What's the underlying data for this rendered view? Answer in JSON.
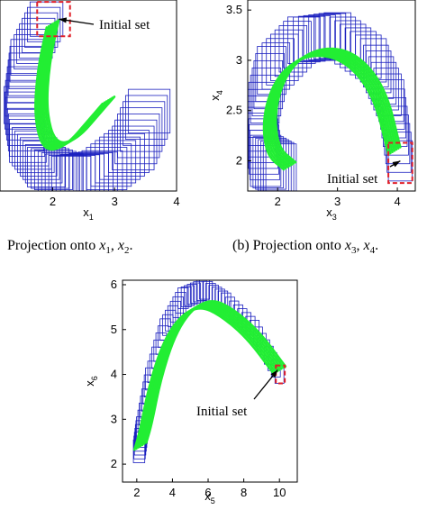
{
  "captions": {
    "a": {
      "prefix": "Projection onto ",
      "v1": "x",
      "s1": "1",
      "v2": "x",
      "s2": "2"
    },
    "b": {
      "prefix": "(b) Projection onto ",
      "v1": "x",
      "s1": "3",
      "v2": "x",
      "s2": "4"
    }
  },
  "colors": {
    "reachable_outline": "#1a1fbf",
    "trajectory": "#22ee33",
    "initial_box": "#e0202a",
    "axis": "#000000"
  },
  "chart_data": [
    {
      "type": "line",
      "id": "panel-a",
      "xlabel": "x",
      "xlabel_sub": "1",
      "ylabel": "",
      "ylabel_sub": "",
      "xlim": [
        1.15,
        4.0
      ],
      "ylim": [
        0.0,
        2.0
      ],
      "xticks": [
        2,
        3,
        4
      ],
      "yticks": [],
      "annotation": {
        "text": "Initial set",
        "arrow_to": [
          2.1,
          1.8
        ]
      },
      "initial_set": {
        "x": [
          1.75,
          2.28
        ],
        "y": [
          1.62,
          1.98
        ]
      },
      "series": [
        {
          "role": "reach-tube",
          "values_x": [
            1.9,
            1.6,
            1.5,
            1.6,
            1.9,
            2.3,
            2.8,
            3.3,
            3.6
          ],
          "values_y": [
            1.8,
            1.4,
            0.9,
            0.5,
            0.25,
            0.15,
            0.2,
            0.45,
            0.9
          ]
        },
        {
          "role": "trajectory",
          "values_x": [
            2.0,
            1.85,
            1.8,
            1.95,
            2.3,
            2.7,
            2.9
          ],
          "values_y": [
            1.75,
            1.3,
            0.8,
            0.45,
            0.5,
            0.8,
            0.95
          ]
        }
      ]
    },
    {
      "type": "line",
      "id": "panel-b",
      "xlabel": "x",
      "xlabel_sub": "3",
      "ylabel": "x",
      "ylabel_sub": "4",
      "xlim": [
        1.5,
        4.3
      ],
      "ylim": [
        1.7,
        3.6
      ],
      "xticks": [
        2,
        3,
        4
      ],
      "yticks": [
        2,
        2.5,
        3,
        3.5
      ],
      "annotation": {
        "text": "Initial set",
        "arrow_to": [
          4.05,
          2.0
        ]
      },
      "initial_set": {
        "x": [
          3.85,
          4.25
        ],
        "y": [
          1.78,
          2.18
        ]
      },
      "series": [
        {
          "role": "reach-tube",
          "values_x": [
            4.05,
            3.9,
            3.6,
            3.0,
            2.4,
            1.9,
            1.7,
            1.8,
            2.1
          ],
          "values_y": [
            2.0,
            2.6,
            3.0,
            3.25,
            3.2,
            2.9,
            2.4,
            2.0,
            1.9
          ]
        },
        {
          "role": "trajectory",
          "values_x": [
            3.95,
            3.7,
            3.2,
            2.6,
            2.1,
            1.85,
            1.9,
            2.2
          ],
          "values_y": [
            2.1,
            2.7,
            3.05,
            3.1,
            2.9,
            2.5,
            2.1,
            1.95
          ]
        }
      ]
    },
    {
      "type": "line",
      "id": "panel-c",
      "xlabel": "x",
      "xlabel_sub": "5",
      "ylabel": "x",
      "ylabel_sub": "6",
      "xlim": [
        1.2,
        11.0
      ],
      "ylim": [
        1.6,
        6.1
      ],
      "xticks": [
        2,
        4,
        6,
        8,
        10
      ],
      "yticks": [
        2,
        3,
        4,
        5,
        6
      ],
      "annotation": {
        "text": "Initial set",
        "arrow_to": [
          9.9,
          4.1
        ]
      },
      "initial_set": {
        "x": [
          9.8,
          10.3
        ],
        "y": [
          3.8,
          4.2
        ]
      },
      "series": [
        {
          "role": "reach-tube",
          "values_x": [
            10.0,
            8.6,
            7.0,
            5.8,
            4.6,
            3.6,
            2.8,
            2.3,
            2.1
          ],
          "values_y": [
            4.0,
            5.0,
            5.6,
            5.9,
            5.7,
            5.0,
            3.9,
            2.8,
            2.2
          ]
        },
        {
          "role": "trajectory",
          "values_x": [
            10.0,
            8.5,
            7.0,
            5.9,
            4.8,
            3.8,
            3.0,
            2.5,
            2.2
          ],
          "values_y": [
            4.1,
            4.9,
            5.4,
            5.6,
            5.4,
            4.8,
            3.8,
            2.8,
            2.4
          ]
        }
      ]
    }
  ]
}
